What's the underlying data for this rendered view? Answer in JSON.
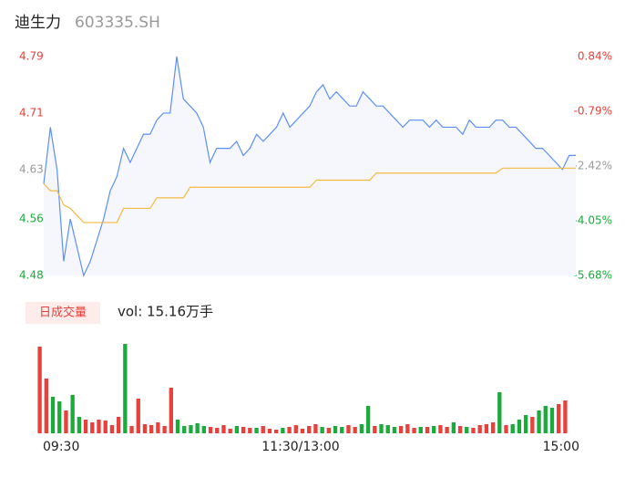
{
  "chart_data": {
    "type": "intraday",
    "title": "迪生力",
    "subtitle": "603335.SH",
    "x_labels": [
      "09:30",
      "11:30/13:00",
      "15:00"
    ],
    "ylim": [
      4.48,
      4.79
    ],
    "yticks": [
      4.79,
      4.71,
      4.63,
      4.56,
      4.48
    ],
    "y2lim": [
      -5.68,
      0.84
    ],
    "y2ticks": [
      {
        "value": 0.84,
        "label": "0.84%"
      },
      {
        "value": -0.79,
        "label": "-0.79%"
      },
      {
        "value": -2.42,
        "label": "-2.42%"
      },
      {
        "value": -4.05,
        "label": "-4.05%"
      },
      {
        "value": -5.68,
        "label": "-5.68%"
      }
    ],
    "series": [
      {
        "color": "#5b8ff9",
        "values": [
          4.61,
          4.69,
          4.63,
          4.5,
          4.56,
          4.52,
          4.48,
          4.5,
          4.53,
          4.56,
          4.6,
          4.62,
          4.66,
          4.64,
          4.66,
          4.68,
          4.68,
          4.7,
          4.71,
          4.71,
          4.79,
          4.73,
          4.72,
          4.71,
          4.69,
          4.64,
          4.66,
          4.66,
          4.66,
          4.67,
          4.65,
          4.66,
          4.68,
          4.67,
          4.68,
          4.69,
          4.71,
          4.69,
          4.7,
          4.71,
          4.72,
          4.74,
          4.75,
          4.73,
          4.74,
          4.73,
          4.72,
          4.72,
          4.74,
          4.73,
          4.72,
          4.72,
          4.71,
          4.7,
          4.69,
          4.7,
          4.7,
          4.7,
          4.69,
          4.7,
          4.69,
          4.69,
          4.69,
          4.68,
          4.7,
          4.69,
          4.69,
          4.69,
          4.7,
          4.7,
          4.69,
          4.69,
          4.68,
          4.67,
          4.66,
          4.66,
          4.65,
          4.64,
          4.63,
          4.65,
          4.65
        ]
      },
      {
        "color": "#f5b942",
        "values": [
          4.61,
          4.6,
          4.6,
          4.58,
          4.575,
          4.565,
          4.555,
          4.555,
          4.555,
          4.555,
          4.555,
          4.555,
          4.575,
          4.575,
          4.575,
          4.575,
          4.575,
          4.59,
          4.59,
          4.59,
          4.59,
          4.59,
          4.605,
          4.605,
          4.605,
          4.605,
          4.605,
          4.605,
          4.605,
          4.605,
          4.605,
          4.605,
          4.605,
          4.605,
          4.605,
          4.605,
          4.605,
          4.605,
          4.605,
          4.605,
          4.605,
          4.615,
          4.615,
          4.615,
          4.615,
          4.615,
          4.615,
          4.615,
          4.615,
          4.615,
          4.625,
          4.625,
          4.625,
          4.625,
          4.625,
          4.625,
          4.625,
          4.625,
          4.625,
          4.625,
          4.625,
          4.625,
          4.625,
          4.625,
          4.625,
          4.625,
          4.625,
          4.625,
          4.625,
          4.632,
          4.632,
          4.632,
          4.632,
          4.632,
          4.632,
          4.632,
          4.632,
          4.632,
          4.632,
          4.632,
          4.632
        ]
      }
    ],
    "volume": {
      "legend": "日成交量",
      "label": "vol: 15.16万手",
      "ylim": [
        0,
        10000
      ],
      "up_color": "#e8403b",
      "down_color": "#1aab3a",
      "values": [
        9500,
        6000,
        4000,
        3500,
        2500,
        4200,
        1800,
        1500,
        1200,
        1500,
        1400,
        900,
        1800,
        9800,
        800,
        3800,
        1000,
        900,
        1200,
        800,
        5000,
        1500,
        800,
        900,
        1100,
        800,
        700,
        600,
        900,
        500,
        800,
        700,
        600,
        600,
        800,
        500,
        400,
        600,
        700,
        900,
        500,
        800,
        1000,
        700,
        600,
        800,
        700,
        900,
        700,
        1000,
        3000,
        800,
        1000,
        900,
        700,
        800,
        1000,
        600,
        700,
        700,
        800,
        900,
        700,
        1200,
        800,
        700,
        600,
        900,
        1000,
        1200,
        4500,
        900,
        1000,
        1500,
        2000,
        1800,
        2500,
        3000,
        2800,
        3200,
        3600
      ]
    }
  }
}
